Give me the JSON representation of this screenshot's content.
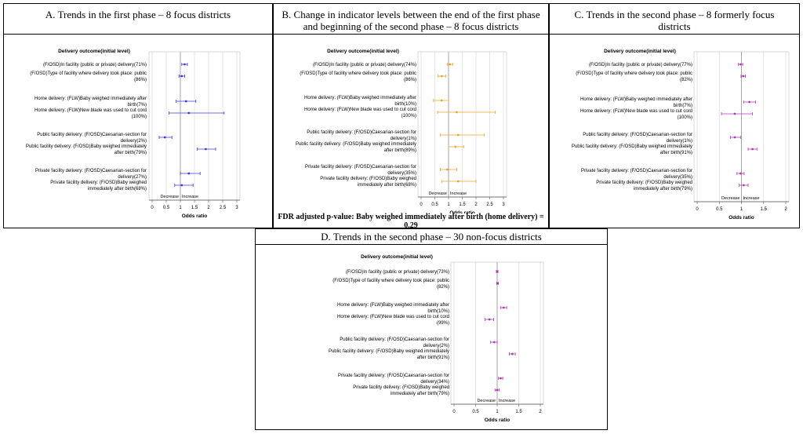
{
  "colors": {
    "A": "#3b3bd6",
    "B": "#f0a030",
    "C": "#b23ab5",
    "D": "#b23ab5",
    "grid": "#d6d6d6",
    "ref": "#9a9a9a"
  },
  "labels": {
    "outcome_header": "Delivery outcome(initial level)",
    "decrease": "Decrease",
    "increase": "Increase",
    "xlabel": "Odds ratio"
  },
  "chart_data": [
    {
      "id": "A",
      "type": "scatter",
      "title": "A. Trends in the first phase – 8 focus districts",
      "xlabel": "Odds ratio",
      "xlim": [
        0,
        3
      ],
      "xticks": [
        "0",
        "0.5",
        "1",
        "1.5",
        "2",
        "2.5",
        "3"
      ],
      "series": [
        {
          "label": [
            "(F/OSD)In facility (public or private) delivery(71%)"
          ],
          "or": 1.15,
          "ci": [
            1.05,
            1.25
          ]
        },
        {
          "label": [
            "(F/OSD)Type of facility where delivery took place: public",
            "(86%)"
          ],
          "or": 1.05,
          "ci": [
            0.95,
            1.15
          ]
        },
        {
          "label": [
            "Home delivery: (FLW)Baby weighed immediately after",
            "birth(7%)"
          ],
          "or": 1.2,
          "ci": [
            0.85,
            1.55
          ]
        },
        {
          "label": [
            "Home delivery: (FLW)New blade was used to cut cord",
            "(100%)"
          ],
          "or": 1.3,
          "ci": [
            0.6,
            2.55
          ]
        },
        {
          "label": [
            "Public facility delivery: (F/OSD)Caesarian-section for",
            "delivery(2%)"
          ],
          "or": 0.45,
          "ci": [
            0.25,
            0.7
          ]
        },
        {
          "label": [
            "Public facility delivery: (F/OSD)Baby weighed immediately",
            "after birth(79%)"
          ],
          "or": 1.9,
          "ci": [
            1.6,
            2.25
          ]
        },
        {
          "label": [
            "Private facility delivery: (F/OSD)Caesarian-section for",
            "delivery(27%)"
          ],
          "or": 1.3,
          "ci": [
            1.0,
            1.7
          ]
        },
        {
          "label": [
            "Private facility delivery: (F/OSD)Baby weighed",
            "immediately after birth(68%)"
          ],
          "or": 1.05,
          "ci": [
            0.8,
            1.45
          ]
        }
      ]
    },
    {
      "id": "B",
      "type": "scatter",
      "title": "B. Change in indicator levels between the end of the first phase and beginning of the second phase – 8 focus districts",
      "xlabel": "Odds ratio",
      "xlim": [
        0,
        3
      ],
      "xticks": [
        "0",
        "0.5",
        "1",
        "1.5",
        "2",
        "2.5",
        "3"
      ],
      "note": "FDR adjusted p-value: Baby weighed immediately after birth (home delivery) = 0.29",
      "series": [
        {
          "label": [
            "(F/OSD)In facility (public or private) delivery(74%)"
          ],
          "or": 1.05,
          "ci": [
            0.95,
            1.15
          ]
        },
        {
          "label": [
            "(F/OSD)Type of facility where delivery took place: public",
            "(86%)"
          ],
          "or": 0.75,
          "ci": [
            0.62,
            0.9
          ]
        },
        {
          "label": [
            "Home delivery: (FLW)Baby weighed immediately after",
            "birth(10%)"
          ],
          "or": 0.75,
          "ci": [
            0.45,
            1.0
          ]
        },
        {
          "label": [
            "Home delivery: (FLW)New blade was used to cut cord",
            "(100%)"
          ],
          "or": 1.3,
          "ci": [
            0.6,
            2.7
          ]
        },
        {
          "label": [
            "Public facility delivery: (F/OSD)Caesarian-section for",
            "delivery(1%)"
          ],
          "or": 1.35,
          "ci": [
            0.7,
            2.3
          ]
        },
        {
          "label": [
            "Public facility delivery: (F/OSD)Baby weighed immediately",
            "after birth(89%)"
          ],
          "or": 1.25,
          "ci": [
            1.0,
            1.55
          ]
        },
        {
          "label": [
            "Private facility delivery: (F/OSD)Caesarian-section for",
            "delivery(35%)"
          ],
          "or": 0.95,
          "ci": [
            0.7,
            1.3
          ]
        },
        {
          "label": [
            "Private facility delivery: (F/OSD)Baby weighed",
            "immediately after birth(68%)"
          ],
          "or": 1.35,
          "ci": [
            0.75,
            2.0
          ]
        }
      ]
    },
    {
      "id": "C",
      "type": "scatter",
      "title": "C. Trends in the second phase – 8 formerly focus districts",
      "xlabel": "Odds ratio",
      "xlim": [
        0,
        2
      ],
      "xticks": [
        "0",
        "0.5",
        "1",
        "1.5",
        "2"
      ],
      "series": [
        {
          "label": [
            "(F/OSD)In facility (public or private) delivery(77%)"
          ],
          "or": 0.98,
          "ci": [
            0.93,
            1.03
          ]
        },
        {
          "label": [
            "(F/OSD)Type of facility where delivery took place: public",
            "(82%)"
          ],
          "or": 1.04,
          "ci": [
            0.99,
            1.09
          ]
        },
        {
          "label": [
            "Home delivery: (FLW)Baby weighed immediately after",
            "birth(7%)"
          ],
          "or": 1.18,
          "ci": [
            1.05,
            1.32
          ]
        },
        {
          "label": [
            "Home delivery: (FLW)New blade was used to cut cord",
            "(100%)"
          ],
          "or": 0.85,
          "ci": [
            0.55,
            1.25
          ]
        },
        {
          "label": [
            "Public facility delivery: (F/OSD)Caesarian-section for",
            "delivery(1%)"
          ],
          "or": 0.85,
          "ci": [
            0.75,
            0.98
          ]
        },
        {
          "label": [
            "Public facility delivery: (F/OSD)Baby weighed immediately",
            "after birth(91%)"
          ],
          "or": 1.25,
          "ci": [
            1.15,
            1.35
          ]
        },
        {
          "label": [
            "Private facility delivery: (F/OSD)Caesarian-section for",
            "delivery(35%)"
          ],
          "or": 0.98,
          "ci": [
            0.9,
            1.06
          ]
        },
        {
          "label": [
            "Private facility delivery: (F/OSD)Baby weighed",
            "immediately after birth(79%)"
          ],
          "or": 1.05,
          "ci": [
            0.95,
            1.15
          ]
        }
      ]
    },
    {
      "id": "D",
      "type": "scatter",
      "title": "D. Trends in the second phase – 30 non-focus districts",
      "xlabel": "Odds ratio",
      "xlim": [
        0,
        2
      ],
      "xticks": [
        "0",
        "0.5",
        "1",
        "1.5",
        "2"
      ],
      "series": [
        {
          "label": [
            "(F/OSD)In facility (public or private) delivery(73%)"
          ],
          "or": 1.0,
          "ci": [
            0.98,
            1.02
          ]
        },
        {
          "label": [
            "(F/OSD)Type of facility where delivery took place: public",
            "(82%)"
          ],
          "or": 1.01,
          "ci": [
            0.99,
            1.03
          ]
        },
        {
          "label": [
            "Home delivery: (FLW)Baby weighed immediately after",
            "birth(10%)"
          ],
          "or": 1.15,
          "ci": [
            1.08,
            1.22
          ]
        },
        {
          "label": [
            "Home delivery: (FLW)New blade was used to cut cord",
            "(99%)"
          ],
          "or": 0.82,
          "ci": [
            0.72,
            0.92
          ]
        },
        {
          "label": [
            "Public facility delivery: (F/OSD)Caesarian-section for",
            "delivery(2%)"
          ],
          "or": 0.93,
          "ci": [
            0.85,
            1.0
          ]
        },
        {
          "label": [
            "Public facility delivery: (F/OSD)Baby weighed immediately",
            "after birth(91%)"
          ],
          "or": 1.35,
          "ci": [
            1.28,
            1.42
          ]
        },
        {
          "label": [
            "Private facility delivery: (F/OSD)Caesarian-section for",
            "delivery(34%)"
          ],
          "or": 1.08,
          "ci": [
            1.03,
            1.13
          ]
        },
        {
          "label": [
            "Private facility delivery: (F/OSD)Baby weighed",
            "immediately after birth(79%)"
          ],
          "or": 1.0,
          "ci": [
            0.95,
            1.05
          ]
        }
      ]
    }
  ]
}
